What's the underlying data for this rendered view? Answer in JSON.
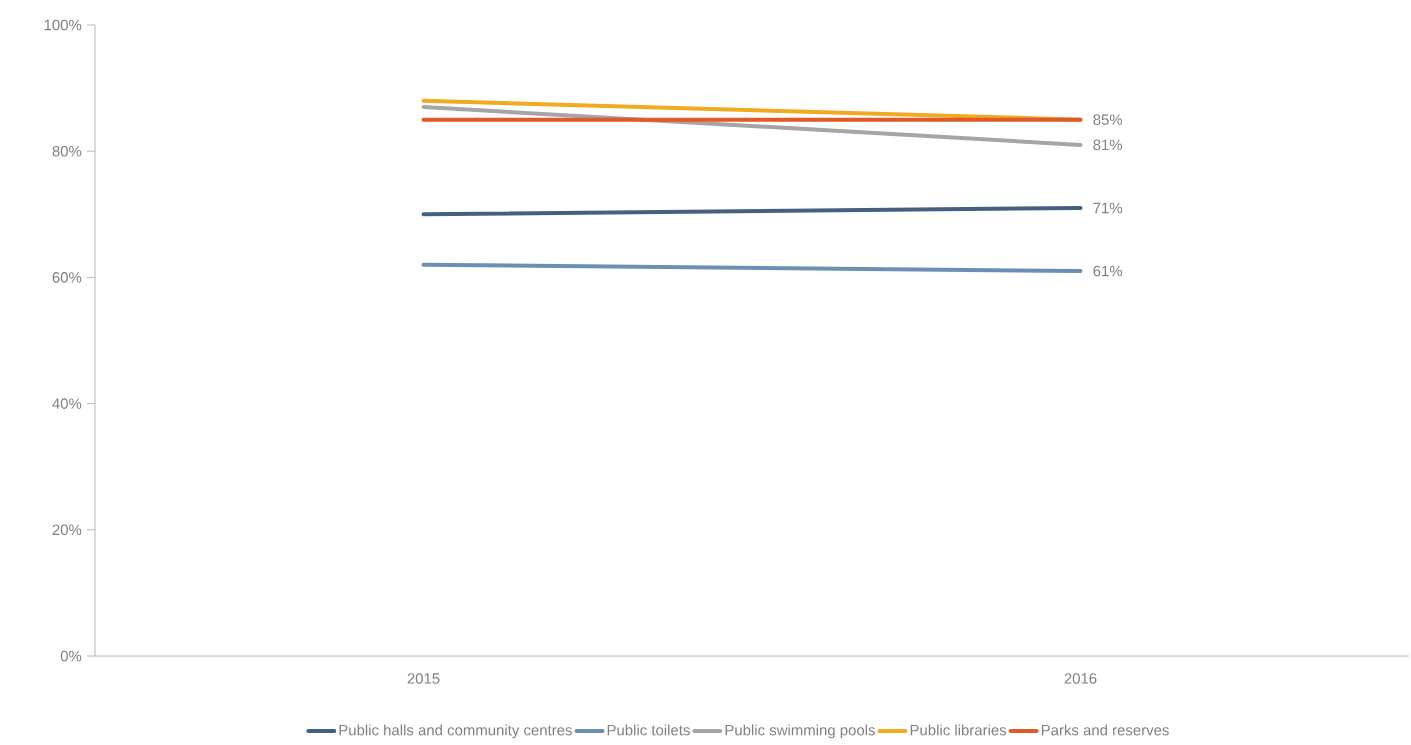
{
  "chart_data": {
    "type": "line",
    "categories": [
      "2015",
      "2016"
    ],
    "series": [
      {
        "name": "Public halls and community centres",
        "color": "#44607f",
        "values": [
          70,
          71
        ],
        "value_labels": [
          null,
          "71%"
        ]
      },
      {
        "name": "Public toilets",
        "color": "#6b8fb4",
        "values": [
          62,
          61
        ],
        "value_labels": [
          null,
          "61%"
        ]
      },
      {
        "name": "Public swimming pools",
        "color": "#a5a5a5",
        "values": [
          87,
          81
        ],
        "value_labels": [
          null,
          "81%"
        ]
      },
      {
        "name": "Public libraries",
        "color": "#f2a922",
        "values": [
          88,
          85
        ],
        "value_labels": [
          null,
          null
        ]
      },
      {
        "name": "Parks and reserves",
        "color": "#e05a28",
        "values": [
          85,
          85
        ],
        "value_labels": [
          null,
          "85%"
        ]
      }
    ],
    "ylim": [
      0,
      100
    ],
    "yticks": [
      {
        "value": 0,
        "label": "0%"
      },
      {
        "value": 20,
        "label": "20%"
      },
      {
        "value": 40,
        "label": "40%"
      },
      {
        "value": 60,
        "label": "60%"
      },
      {
        "value": 80,
        "label": "80%"
      },
      {
        "value": 100,
        "label": "100%"
      }
    ],
    "grid": false,
    "legend": "bottom",
    "marker": "none",
    "line_style": "solid"
  }
}
